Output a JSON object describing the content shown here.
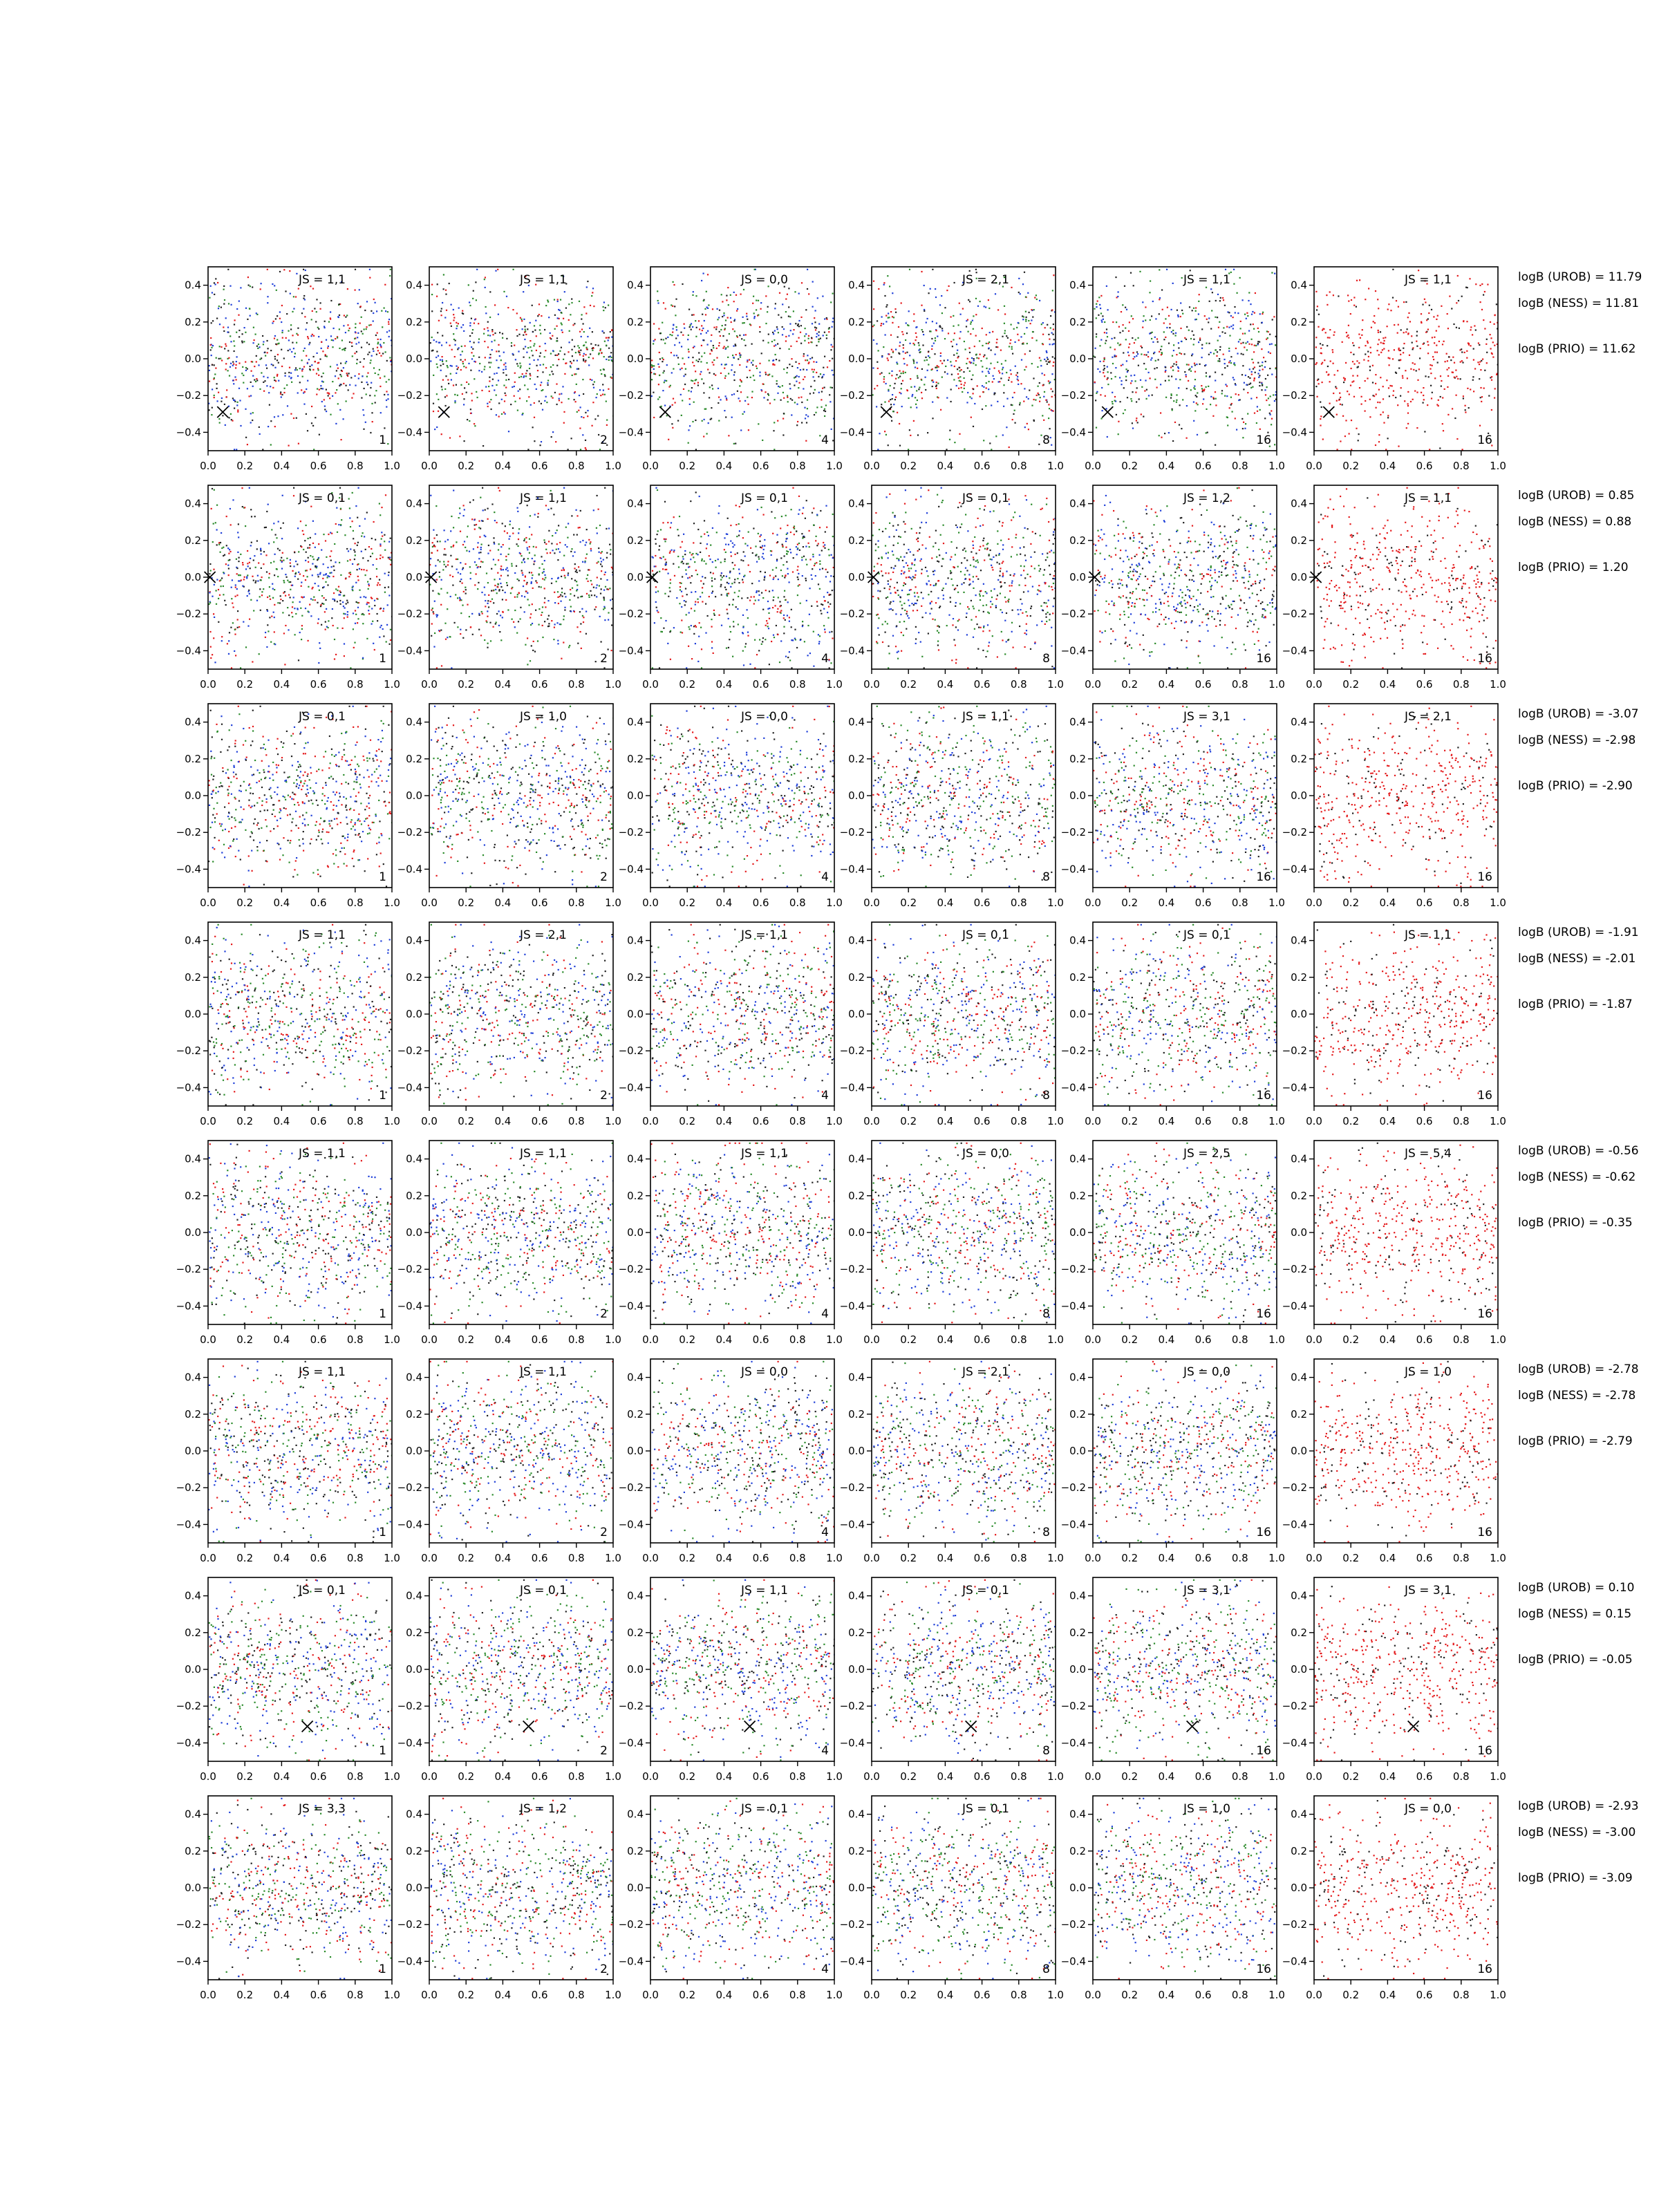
{
  "chart_data": {
    "type": "scatter",
    "grid": false,
    "xlim": [
      0.0,
      1.0
    ],
    "ylim": [
      -0.5,
      0.5
    ],
    "x_ticks": [
      "0.0",
      "0.2",
      "0.4",
      "0.6",
      "0.8",
      "1.0"
    ],
    "y_ticks": [
      "0.4",
      "0.2",
      "0.0",
      "−0.2",
      "−0.4"
    ],
    "column_counts": [
      "1",
      "2",
      "4",
      "8",
      "16",
      "16"
    ],
    "colors": {
      "red": "#e41a1c",
      "blue": "#1f3fd8",
      "green": "#2a8a2a",
      "black": "#222222"
    },
    "rows": [
      {
        "panels": [
          {
            "js": "JS = 1,1",
            "count": "1"
          },
          {
            "js": "JS = 1,1",
            "count": "2"
          },
          {
            "js": "JS = 0,0",
            "count": "4"
          },
          {
            "js": "JS = 2,1",
            "count": "8"
          },
          {
            "js": "JS = 1,1",
            "count": "16"
          },
          {
            "js": "JS = 1,1",
            "count": "16"
          }
        ],
        "marker": {
          "x": 0.08,
          "y": -0.29
        },
        "logB_urob": "logB (UROB) = 11.79",
        "logB_ness": "logB (NESS) = 11.81",
        "logB_prio": "logB (PRIO) = 11.62"
      },
      {
        "panels": [
          {
            "js": "JS = 0,1",
            "count": "1"
          },
          {
            "js": "JS = 1,1",
            "count": "2"
          },
          {
            "js": "JS = 0,1",
            "count": "4"
          },
          {
            "js": "JS = 0,1",
            "count": "8"
          },
          {
            "js": "JS = 1,2",
            "count": "16"
          },
          {
            "js": "JS = 1,1",
            "count": "16"
          }
        ],
        "marker": {
          "x": 0.01,
          "y": 0.0
        },
        "logB_urob": "logB (UROB) = 0.85",
        "logB_ness": "logB (NESS) = 0.88",
        "logB_prio": "logB (PRIO) = 1.20"
      },
      {
        "panels": [
          {
            "js": "JS = 0,1",
            "count": "1"
          },
          {
            "js": "JS = 1,0",
            "count": "2"
          },
          {
            "js": "JS = 0,0",
            "count": "4"
          },
          {
            "js": "JS = 1,1",
            "count": "8"
          },
          {
            "js": "JS = 3,1",
            "count": "16"
          },
          {
            "js": "JS = 2,1",
            "count": "16"
          }
        ],
        "marker": null,
        "logB_urob": "logB (UROB) = -3.07",
        "logB_ness": "logB (NESS) = -2.98",
        "logB_prio": "logB (PRIO) = -2.90"
      },
      {
        "panels": [
          {
            "js": "JS = 1,1",
            "count": "1"
          },
          {
            "js": "JS = 2,1",
            "count": "2"
          },
          {
            "js": "JS = 1,1",
            "count": "4"
          },
          {
            "js": "JS = 0,1",
            "count": "8"
          },
          {
            "js": "JS = 0,1",
            "count": "16"
          },
          {
            "js": "JS = 1,1",
            "count": "16"
          }
        ],
        "marker": null,
        "logB_urob": "logB (UROB) = -1.91",
        "logB_ness": "logB (NESS) = -2.01",
        "logB_prio": "logB (PRIO) = -1.87"
      },
      {
        "panels": [
          {
            "js": "JS = 1,1",
            "count": "1"
          },
          {
            "js": "JS = 1,1",
            "count": "2"
          },
          {
            "js": "JS = 1,1",
            "count": "4"
          },
          {
            "js": "JS = 0,0",
            "count": "8"
          },
          {
            "js": "JS = 2,5",
            "count": "16"
          },
          {
            "js": "JS = 5,4",
            "count": "16"
          }
        ],
        "marker": null,
        "logB_urob": "logB (UROB) = -0.56",
        "logB_ness": "logB (NESS) = -0.62",
        "logB_prio": "logB (PRIO) = -0.35"
      },
      {
        "panels": [
          {
            "js": "JS = 1,1",
            "count": "1"
          },
          {
            "js": "JS = 1,1",
            "count": "2"
          },
          {
            "js": "JS = 0,0",
            "count": "4"
          },
          {
            "js": "JS = 2,1",
            "count": "8"
          },
          {
            "js": "JS = 0,0",
            "count": "16"
          },
          {
            "js": "JS = 1,0",
            "count": "16"
          }
        ],
        "marker": null,
        "logB_urob": "logB (UROB) = -2.78",
        "logB_ness": "logB (NESS) = -2.78",
        "logB_prio": "logB (PRIO) = -2.79"
      },
      {
        "panels": [
          {
            "js": "JS = 0,1",
            "count": "1"
          },
          {
            "js": "JS = 0,1",
            "count": "2"
          },
          {
            "js": "JS = 1,1",
            "count": "4"
          },
          {
            "js": "JS = 0,1",
            "count": "8"
          },
          {
            "js": "JS = 3,1",
            "count": "16"
          },
          {
            "js": "JS = 3,1",
            "count": "16"
          }
        ],
        "marker": {
          "x": 0.54,
          "y": -0.31
        },
        "logB_urob": "logB (UROB) = 0.10",
        "logB_ness": "logB (NESS) = 0.15",
        "logB_prio": "logB (PRIO) = -0.05"
      },
      {
        "panels": [
          {
            "js": "JS = 3,3",
            "count": "1"
          },
          {
            "js": "JS = 1,2",
            "count": "2"
          },
          {
            "js": "JS = 0,1",
            "count": "4"
          },
          {
            "js": "JS = 0,1",
            "count": "8"
          },
          {
            "js": "JS = 1,0",
            "count": "16"
          },
          {
            "js": "JS = 0,0",
            "count": "16"
          }
        ],
        "marker": null,
        "logB_urob": "logB (UROB) = -2.93",
        "logB_ness": "logB (NESS) = -3.00",
        "logB_prio": "logB (PRIO) = -3.09"
      }
    ]
  }
}
